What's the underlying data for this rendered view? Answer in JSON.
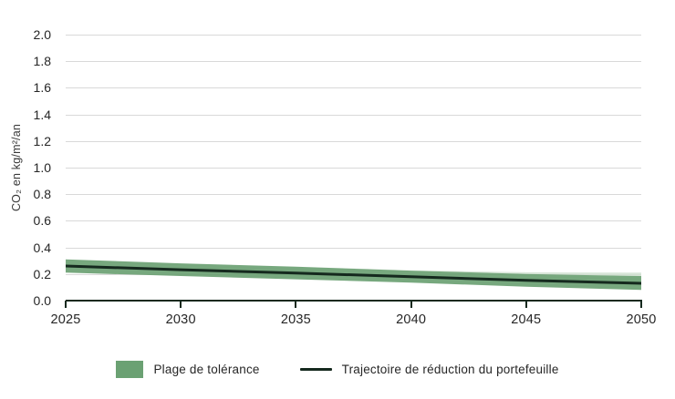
{
  "chart_data": {
    "type": "line",
    "title": "",
    "xlabel": "",
    "ylabel": "CO₂ en kg/m²/an",
    "x": [
      2025,
      2030,
      2035,
      2040,
      2045,
      2050
    ],
    "series": [
      {
        "name": "Plage de tolérance",
        "type": "band",
        "upper": [
          0.31,
          0.28,
          0.255,
          0.225,
          0.2,
          0.185
        ],
        "lower": [
          0.21,
          0.185,
          0.16,
          0.135,
          0.105,
          0.08
        ],
        "upper_outer": [
          0.31,
          0.28,
          0.255,
          0.228,
          0.213,
          0.21
        ]
      },
      {
        "name": "Trajectoire de réduction du portefeuille",
        "type": "line",
        "values": [
          0.26,
          0.232,
          0.207,
          0.18,
          0.152,
          0.13
        ]
      }
    ],
    "ylim": [
      0.0,
      2.0
    ],
    "yticks": [
      0.0,
      0.2,
      0.4,
      0.6,
      0.8,
      1.0,
      1.2,
      1.4,
      1.6,
      1.8,
      2.0
    ],
    "xticks": [
      2025,
      2030,
      2035,
      2040,
      2045,
      2050
    ],
    "grid": "horizontal",
    "legend_position": "bottom"
  },
  "legend": {
    "items": [
      {
        "label": "Plage de tolérance",
        "swatch": "band"
      },
      {
        "label": "Trajectoire de réduction du portefeuille",
        "swatch": "line"
      }
    ]
  },
  "colors": {
    "band": "#6ba173",
    "band_outer": "#cfe0cf",
    "line": "#15291e",
    "grid": "#d9d9d9",
    "axis": "#15291e",
    "text": "#2b2b2b"
  }
}
